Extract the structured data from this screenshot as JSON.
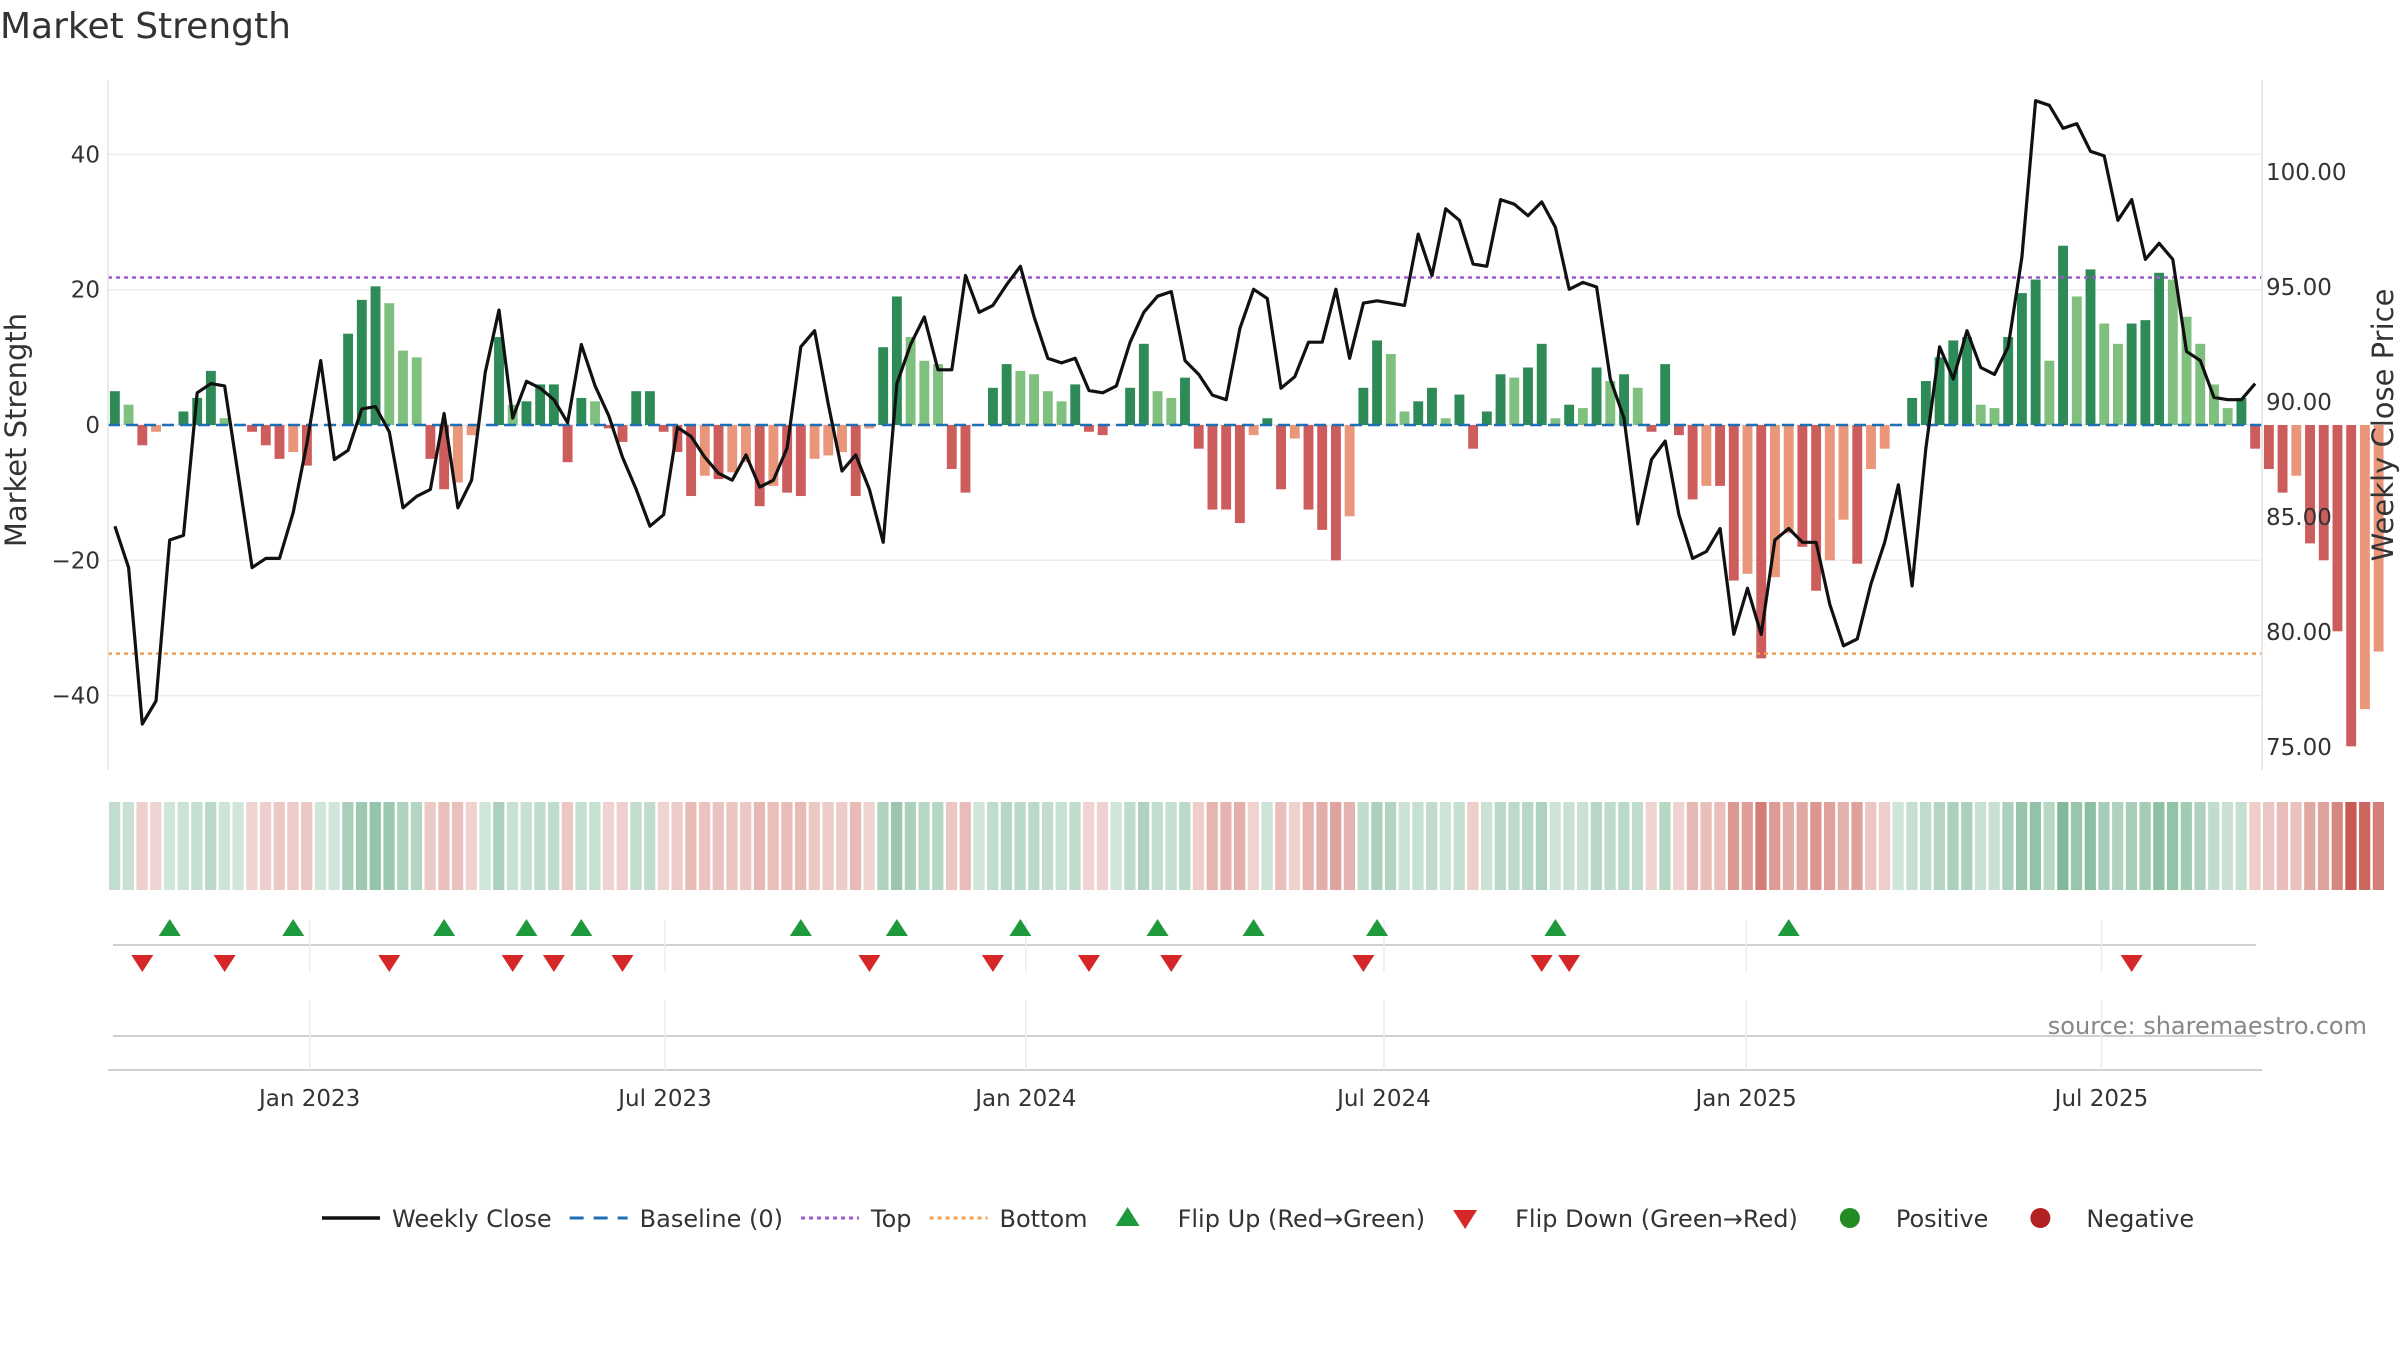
{
  "chart_data": {
    "type": "bar",
    "title": "Market Strength",
    "ylabel_left": "Market Strength",
    "ylabel_right": "Weekly Close Price",
    "ylim_left": [
      -51,
      51
    ],
    "ylim_right": [
      74,
      104
    ],
    "yticks_left": [
      {
        "value": 40,
        "label": "40"
      },
      {
        "value": 20,
        "label": "20"
      },
      {
        "value": 0,
        "label": "0"
      },
      {
        "value": -20,
        "label": "−20"
      },
      {
        "value": -40,
        "label": "−40"
      }
    ],
    "yticks_right": [
      {
        "value": 100,
        "label": "100.00"
      },
      {
        "value": 95,
        "label": "95.00"
      },
      {
        "value": 90,
        "label": "90.00"
      },
      {
        "value": 85,
        "label": "85.00"
      },
      {
        "value": 80,
        "label": "80.00"
      },
      {
        "value": 75,
        "label": "75.00"
      }
    ],
    "x_range_weeks": [
      0,
      157
    ],
    "xticks": [
      {
        "week": 14.7,
        "label": "Jan 2023"
      },
      {
        "week": 40.6,
        "label": "Jul 2023"
      },
      {
        "week": 66.9,
        "label": "Jan 2024"
      },
      {
        "week": 93.0,
        "label": "Jul 2024"
      },
      {
        "week": 119.4,
        "label": "Jan 2025"
      },
      {
        "week": 145.3,
        "label": "Jul 2025"
      }
    ],
    "top_line": 21.8,
    "bottom_line": -33.8,
    "strength": [
      5,
      3,
      -3,
      -1,
      0,
      2,
      4,
      8,
      1,
      0,
      -1,
      -3,
      -5,
      -4,
      -6,
      0,
      0,
      13.5,
      18.5,
      20.5,
      18,
      11,
      10,
      -5,
      -9.5,
      -8.5,
      -1.5,
      0,
      13,
      3,
      3.5,
      6,
      6,
      -5.5,
      4,
      3.5,
      -0.5,
      -2.5,
      5,
      5,
      -1,
      -4,
      -10.5,
      -7.5,
      -8,
      -7,
      -5.5,
      -12,
      -9,
      -10,
      -10.5,
      -5,
      -4.5,
      -4,
      -10.5,
      -0.5,
      11.5,
      19,
      13,
      9.5,
      9,
      -6.5,
      -10,
      0,
      5.5,
      9,
      8,
      7.5,
      5,
      3.5,
      6,
      -1,
      -1.5,
      0,
      5.5,
      12,
      5,
      4,
      7,
      -3.5,
      -12.5,
      -12.5,
      -14.5,
      -1.5,
      1,
      -9.5,
      -2,
      -12.5,
      -15.5,
      -20,
      -13.5,
      5.5,
      12.5,
      10.5,
      2,
      3.5,
      5.5,
      1,
      4.5,
      -3.5,
      2,
      7.5,
      7,
      8.5,
      12,
      1,
      3,
      2.5,
      8.5,
      6.5,
      7.5,
      5.5,
      -1,
      9,
      -1.5,
      -11,
      -9,
      -9,
      -23,
      -22,
      -34.5,
      -22.5,
      -16,
      -18,
      -24.5,
      -20,
      -14,
      -20.5,
      -6.5,
      -3.5,
      0,
      4,
      6.5,
      10,
      12.5,
      13,
      3,
      2.5,
      13,
      19.5,
      21.5,
      9.5,
      26.5,
      19,
      23,
      15,
      12,
      15,
      15.5,
      22.5,
      21.5,
      16,
      12,
      6,
      2.5,
      4,
      -3.5,
      -6.5,
      -10,
      -7.5,
      -17.5,
      -20,
      -30.5,
      -47.5,
      -42,
      -33.5
    ],
    "weekly_close": [
      84.6,
      82.8,
      76.0,
      77.0,
      84.0,
      84.2,
      90.4,
      90.8,
      90.7,
      86.8,
      82.8,
      83.2,
      83.2,
      85.2,
      88.2,
      91.8,
      87.5,
      87.9,
      89.7,
      89.8,
      88.7,
      85.4,
      85.9,
      86.2,
      89.5,
      85.4,
      86.6,
      91.3,
      94.0,
      89.3,
      90.9,
      90.6,
      90.1,
      89.1,
      92.5,
      90.7,
      89.4,
      87.6,
      86.2,
      84.6,
      85.1,
      88.9,
      88.5,
      87.6,
      86.9,
      86.6,
      87.7,
      86.3,
      86.6,
      88.0,
      92.4,
      93.1,
      89.9,
      87.0,
      87.7,
      86.2,
      83.9,
      90.8,
      92.5,
      93.7,
      91.4,
      91.4,
      95.5,
      93.9,
      94.2,
      95.1,
      95.9,
      93.7,
      91.9,
      91.7,
      91.9,
      90.5,
      90.4,
      90.7,
      92.6,
      93.9,
      94.6,
      94.8,
      91.8,
      91.2,
      90.3,
      90.1,
      93.2,
      94.9,
      94.5,
      90.6,
      91.1,
      92.6,
      92.6,
      94.9,
      91.9,
      94.3,
      94.4,
      94.3,
      94.2,
      97.3,
      95.5,
      98.4,
      97.9,
      96.0,
      95.9,
      98.8,
      98.6,
      98.1,
      98.7,
      97.6,
      94.9,
      95.2,
      95.0,
      91.0,
      89.3,
      84.7,
      87.5,
      88.3,
      85.1,
      83.2,
      83.5,
      84.5,
      79.9,
      81.9,
      79.9,
      84.0,
      84.5,
      83.9,
      83.9,
      81.2,
      79.4,
      79.7,
      82.1,
      83.9,
      86.4,
      82.0,
      88.0,
      92.4,
      91.0,
      93.1,
      91.5,
      91.2,
      92.4,
      96.3,
      103.1,
      102.9,
      101.9,
      102.1,
      100.9,
      100.7,
      97.9,
      98.8,
      96.2,
      96.9,
      96.2,
      92.2,
      91.8,
      90.2,
      90.1,
      90.1,
      90.8
    ],
    "flip_up_weeks": [
      4,
      13,
      24,
      30,
      34,
      50,
      57,
      66,
      76,
      83,
      92,
      105,
      122
    ],
    "flip_down_weeks": [
      2,
      8,
      20,
      29,
      32,
      37,
      55,
      64,
      71,
      77,
      91,
      104,
      106,
      147
    ],
    "legend": [
      {
        "type": "line",
        "label": "Weekly Close",
        "color": "#111111"
      },
      {
        "type": "dashed",
        "label": "Baseline (0)",
        "color": "#1f6fb4"
      },
      {
        "type": "dotted",
        "label": "Top",
        "color": "#9b59d0"
      },
      {
        "type": "dotted",
        "label": "Bottom",
        "color": "#f0a050"
      },
      {
        "type": "tri-up",
        "label": "Flip Up (Red→Green)",
        "color": "#1e9a3c"
      },
      {
        "type": "tri-down",
        "label": "Flip Down (Green→Red)",
        "color": "#d62728"
      },
      {
        "type": "dot",
        "label": "Positive",
        "color": "#228b22"
      },
      {
        "type": "dot",
        "label": "Negative",
        "color": "#b22222"
      }
    ],
    "colors": {
      "pos_strong": "#2e8b57",
      "pos_light": "#7fc07f",
      "neg_strong": "#cd5c5c",
      "neg_light": "#e9967a",
      "close_line": "#111111",
      "baseline": "#1f6fb4",
      "top_line": "#9b59d0",
      "bottom_line": "#f0a050",
      "flip_up": "#1e9a3c",
      "flip_down": "#d62728"
    }
  },
  "source_text": "source: sharemaestro.com"
}
